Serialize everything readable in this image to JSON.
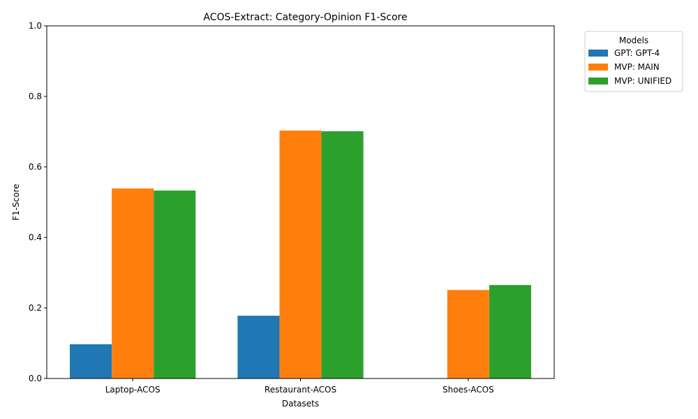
{
  "chart_data": {
    "type": "bar",
    "title": "ACOS-Extract: Category-Opinion F1-Score",
    "xlabel": "Datasets",
    "ylabel": "F1-Score",
    "ylim": [
      0,
      1
    ],
    "yticks": [
      0.0,
      0.2,
      0.4,
      0.6,
      0.8,
      1.0
    ],
    "ytick_labels": [
      "0.0",
      "0.2",
      "0.4",
      "0.6",
      "0.8",
      "1.0"
    ],
    "categories": [
      "Laptop-ACOS",
      "Restaurant-ACOS",
      "Shoes-ACOS"
    ],
    "series": [
      {
        "name": "GPT: GPT-4",
        "color": "#1f77b4",
        "values": [
          0.097,
          0.178,
          0.0
        ]
      },
      {
        "name": "MVP: MAIN",
        "color": "#ff7f0e",
        "values": [
          0.539,
          0.703,
          0.251
        ]
      },
      {
        "name": "MVP: UNIFIED",
        "color": "#2ca02c",
        "values": [
          0.533,
          0.701,
          0.265
        ]
      }
    ],
    "legend": {
      "title": "Models",
      "placement": "outside-top-right"
    },
    "grid": false
  }
}
